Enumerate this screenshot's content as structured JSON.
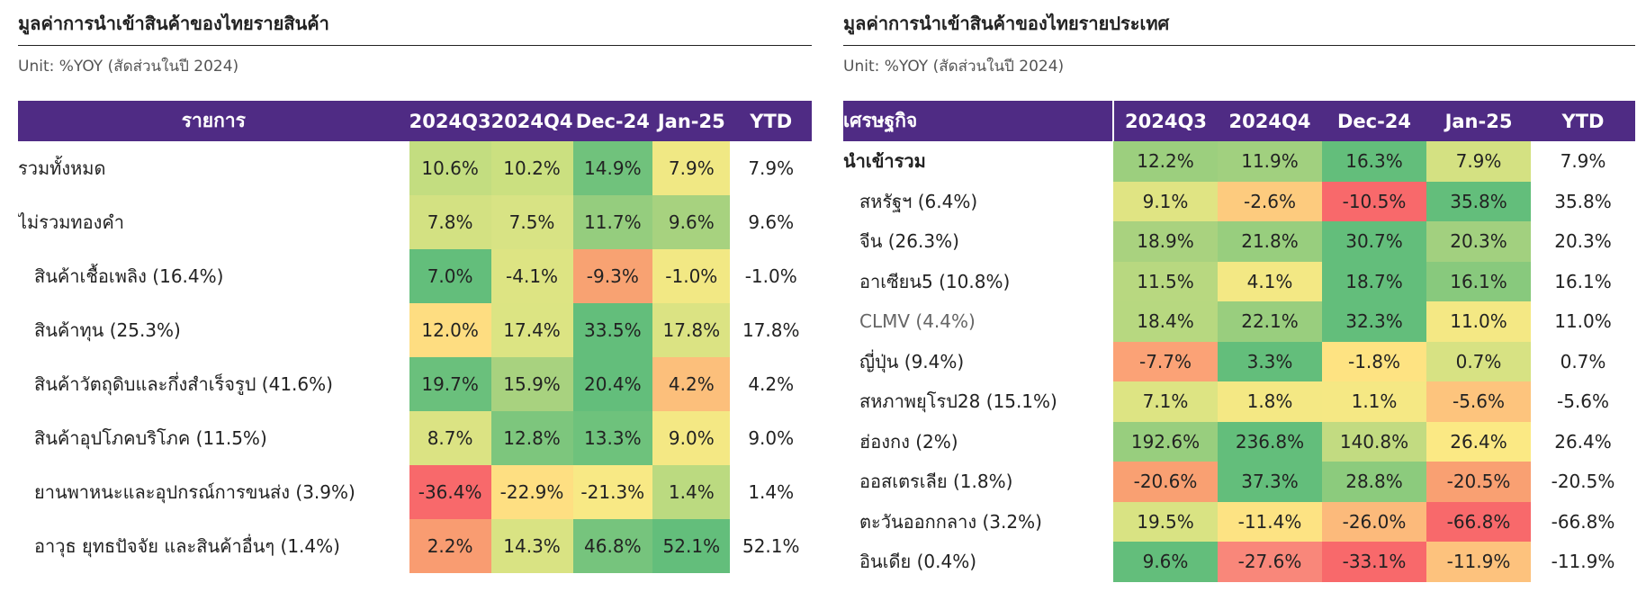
{
  "left": {
    "title": "มูลค่าการนำเข้าสินค้าของไทยรายสินค้า",
    "unit": "Unit: %YOY (สัดส่วนในปี 2024)",
    "headers": [
      "รายการ",
      "2024Q3",
      "2024Q4",
      "Dec-24",
      "Jan-25",
      "YTD"
    ],
    "rows": [
      {
        "label": "รวมทั้งหมด",
        "indent": 0,
        "bold": false,
        "muted": false,
        "values": [
          "10.6%",
          "10.2%",
          "14.9%",
          "7.9%"
        ],
        "colors": [
          "#c3dd80",
          "#cbe080",
          "#70c27c",
          "#f0e884"
        ],
        "ytd": "7.9%"
      },
      {
        "label": "ไม่รวมทองคำ",
        "indent": 0,
        "bold": false,
        "muted": false,
        "values": [
          "7.8%",
          "7.5%",
          "11.7%",
          "9.6%"
        ],
        "colors": [
          "#d3e182",
          "#d8e384",
          "#95cd7e",
          "#a7d27f"
        ],
        "ytd": "9.6%"
      },
      {
        "label": "สินค้าเชื้อเพลิง (16.4%)",
        "indent": 1,
        "bold": false,
        "muted": false,
        "values": [
          "7.0%",
          "-4.1%",
          "-9.3%",
          "-1.0%"
        ],
        "colors": [
          "#63be7b",
          "#dde483",
          "#f8a272",
          "#f2e884"
        ],
        "ytd": "-1.0%"
      },
      {
        "label": "สินค้าทุน (25.3%)",
        "indent": 1,
        "bold": false,
        "muted": false,
        "values": [
          "12.0%",
          "17.4%",
          "33.5%",
          "17.8%"
        ],
        "colors": [
          "#fedd81",
          "#dce483",
          "#63be7b",
          "#dbe383"
        ],
        "ytd": "17.8%"
      },
      {
        "label": "สินค้าวัตถุดิบและกึ่งสำเร็จรูป (41.6%)",
        "indent": 1,
        "bold": false,
        "muted": false,
        "values": [
          "19.7%",
          "15.9%",
          "20.4%",
          "4.2%"
        ],
        "colors": [
          "#6ac07c",
          "#a8d27f",
          "#63be7b",
          "#fcbf7b"
        ],
        "ytd": "4.2%"
      },
      {
        "label": "สินค้าอุปโภคบริโภค (11.5%)",
        "indent": 1,
        "bold": false,
        "muted": false,
        "values": [
          "8.7%",
          "12.8%",
          "13.3%",
          "9.0%"
        ],
        "colors": [
          "#dbe383",
          "#7dc67d",
          "#6ec27c",
          "#f4e884"
        ],
        "ytd": "9.0%"
      },
      {
        "label": "ยานพาหนะและอุปกรณ์การขนส่ง (3.9%)",
        "indent": 1,
        "bold": false,
        "muted": false,
        "values": [
          "-36.4%",
          "-22.9%",
          "-21.3%",
          "1.4%"
        ],
        "colors": [
          "#f8696b",
          "#fedf82",
          "#f8e985",
          "#bbda80"
        ],
        "ytd": "1.4%"
      },
      {
        "label": "อาวุธ ยุทธปัจจัย และสินค้าอื่นๆ (1.4%)",
        "indent": 1,
        "bold": false,
        "muted": false,
        "values": [
          "2.2%",
          "14.3%",
          "46.8%",
          "52.1%"
        ],
        "colors": [
          "#f99c71",
          "#d9e383",
          "#76c47d",
          "#63be7b"
        ],
        "ytd": "52.1%"
      }
    ]
  },
  "right": {
    "title": "มูลค่าการนำเข้าสินค้าของไทยรายประเทศ",
    "unit": "Unit: %YOY (สัดส่วนในปี 2024)",
    "headers": [
      "เศรษฐกิจ",
      "2024Q3",
      "2024Q4",
      "Dec-24",
      "Jan-25",
      "YTD"
    ],
    "rows": [
      {
        "label": "นำเข้ารวม",
        "indent": 0,
        "bold": true,
        "muted": false,
        "values": [
          "12.2%",
          "11.9%",
          "16.3%",
          "7.9%"
        ],
        "colors": [
          "#9ccf7e",
          "#a1d07f",
          "#63be7b",
          "#d4e182"
        ],
        "ytd": "7.9%"
      },
      {
        "label": "สหรัฐฯ (6.4%)",
        "indent": 1,
        "bold": false,
        "muted": false,
        "values": [
          "9.1%",
          "-2.6%",
          "-10.5%",
          "35.8%"
        ],
        "colors": [
          "#e0e483",
          "#fdcb7e",
          "#f8696b",
          "#63be7b"
        ],
        "ytd": "35.8%"
      },
      {
        "label": "จีน (26.3%)",
        "indent": 1,
        "bold": false,
        "muted": false,
        "values": [
          "18.9%",
          "21.8%",
          "30.7%",
          "20.3%"
        ],
        "colors": [
          "#a9d27f",
          "#98ce7e",
          "#63be7b",
          "#a2d07f"
        ],
        "ytd": "20.3%"
      },
      {
        "label": "อาเซียน5 (10.8%)",
        "indent": 1,
        "bold": false,
        "muted": false,
        "values": [
          "11.5%",
          "4.1%",
          "18.7%",
          "16.1%"
        ],
        "colors": [
          "#b8d880",
          "#f3e884",
          "#63be7b",
          "#88c97d"
        ],
        "ytd": "16.1%"
      },
      {
        "label": "CLMV (4.4%)",
        "indent": 1,
        "bold": false,
        "muted": true,
        "values": [
          "18.4%",
          "22.1%",
          "32.3%",
          "11.0%"
        ],
        "colors": [
          "#b7d880",
          "#99ce7e",
          "#63be7b",
          "#f4e884"
        ],
        "ytd": "11.0%"
      },
      {
        "label": "ญี่ปุ่น (9.4%)",
        "indent": 1,
        "bold": false,
        "muted": false,
        "values": [
          "-7.7%",
          "3.3%",
          "-1.8%",
          "0.7%"
        ],
        "colors": [
          "#fba276",
          "#63be7b",
          "#fee382",
          "#d7e283"
        ],
        "ytd": "0.7%"
      },
      {
        "label": "สหภาพยุโรป28 (15.1%)",
        "indent": 1,
        "bold": false,
        "muted": false,
        "values": [
          "7.1%",
          "1.8%",
          "1.1%",
          "-5.6%"
        ],
        "colors": [
          "#dde483",
          "#f4e884",
          "#f5e884",
          "#fdc47d"
        ],
        "ytd": "-5.6%"
      },
      {
        "label": "ฮ่องกง (2%)",
        "indent": 1,
        "bold": false,
        "muted": false,
        "values": [
          "192.6%",
          "236.8%",
          "140.8%",
          "26.4%"
        ],
        "colors": [
          "#98ce7e",
          "#63be7b",
          "#c2db81",
          "#fbe984"
        ],
        "ytd": "26.4%"
      },
      {
        "label": "ออสเตรเลีย (1.8%)",
        "indent": 1,
        "bold": false,
        "muted": false,
        "values": [
          "-20.6%",
          "37.3%",
          "28.8%",
          "-20.5%"
        ],
        "colors": [
          "#f9a072",
          "#63be7b",
          "#8ccb7d",
          "#f9a072"
        ],
        "ytd": "-20.5%"
      },
      {
        "label": "ตะวันออกกลาง (3.2%)",
        "indent": 1,
        "bold": false,
        "muted": false,
        "values": [
          "19.5%",
          "-11.4%",
          "-26.0%",
          "-66.8%"
        ],
        "colors": [
          "#d9e383",
          "#fde383",
          "#fcba7b",
          "#f8696b"
        ],
        "ytd": "-66.8%"
      },
      {
        "label": "อินเดีย (0.4%)",
        "indent": 1,
        "bold": false,
        "muted": false,
        "values": [
          "9.6%",
          "-27.6%",
          "-33.1%",
          "-11.9%"
        ],
        "colors": [
          "#63be7b",
          "#f9877a",
          "#f8696b",
          "#fdc27d"
        ],
        "ytd": "-11.9%"
      }
    ]
  }
}
